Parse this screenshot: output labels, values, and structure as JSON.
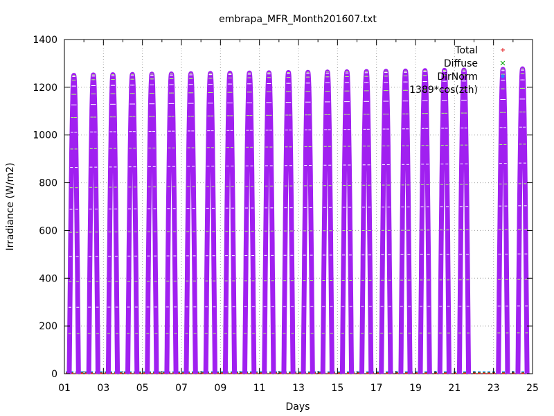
{
  "chart_data": {
    "type": "scatter",
    "title": "embrapa_MFR_Month201607.txt",
    "xlabel": "Days",
    "ylabel": "Irradiance (W/m2)",
    "xlim": [
      1,
      25
    ],
    "ylim": [
      0,
      1400
    ],
    "grid": true,
    "legend_position": "top-right",
    "x_tick_labels": [
      "01",
      "03",
      "05",
      "07",
      "09",
      "11",
      "13",
      "15",
      "17",
      "19",
      "21",
      "23",
      "25"
    ],
    "y_tick_labels": [
      "0",
      "200",
      "400",
      "600",
      "800",
      "1000",
      "1200",
      "1400"
    ],
    "series": [
      {
        "name": "Total",
        "marker": "+",
        "color": "#e41a1c"
      },
      {
        "name": "Diffuse",
        "marker": "x",
        "color": "#00a000"
      },
      {
        "name": "DirNorm",
        "marker": "*",
        "color": "#1f8fff"
      },
      {
        "name": "1389*cos(zth)",
        "marker": "square",
        "color": "#a020f0"
      }
    ],
    "daily_peak_cos_zth": [
      {
        "day": 1,
        "peak": 1250
      },
      {
        "day": 2,
        "peak": 1252
      },
      {
        "day": 3,
        "peak": 1253
      },
      {
        "day": 4,
        "peak": 1254
      },
      {
        "day": 5,
        "peak": 1255
      },
      {
        "day": 6,
        "peak": 1256
      },
      {
        "day": 7,
        "peak": 1257
      },
      {
        "day": 8,
        "peak": 1258
      },
      {
        "day": 9,
        "peak": 1259
      },
      {
        "day": 10,
        "peak": 1260
      },
      {
        "day": 11,
        "peak": 1261
      },
      {
        "day": 12,
        "peak": 1262
      },
      {
        "day": 13,
        "peak": 1263
      },
      {
        "day": 14,
        "peak": 1264
      },
      {
        "day": 15,
        "peak": 1265
      },
      {
        "day": 16,
        "peak": 1266
      },
      {
        "day": 17,
        "peak": 1267
      },
      {
        "day": 18,
        "peak": 1268
      },
      {
        "day": 19,
        "peak": 1270
      },
      {
        "day": 20,
        "peak": 1271
      },
      {
        "day": 21,
        "peak": 1272
      },
      {
        "day": 22,
        "peak": null
      },
      {
        "day": 23,
        "peak": 1275
      },
      {
        "day": 24,
        "peak": 1277
      }
    ],
    "sunrise_fraction": 0.25,
    "sunset_fraction": 0.72,
    "data_gap_days": [
      21.2,
      22.1
    ]
  }
}
